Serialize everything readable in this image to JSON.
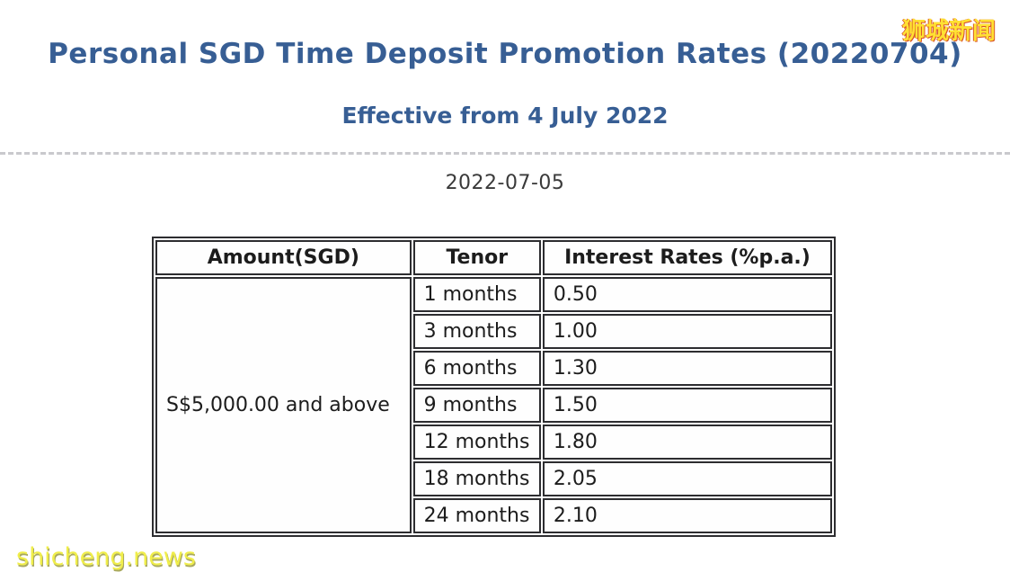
{
  "header": {
    "title": "Personal SGD Time Deposit Promotion Rates (20220704)",
    "subtitle": "Effective from 4 July 2022",
    "date": "2022-07-05"
  },
  "watermarks": {
    "top_right": "狮城新闻",
    "bottom_left": "shicheng.news"
  },
  "colors": {
    "heading_blue": "#375E94",
    "table_border": "#2d2d30",
    "watermark_yellow": "#ffe133",
    "watermark_yellow2": "#f0ee4a"
  },
  "table": {
    "columns": [
      "Amount(SGD)",
      "Tenor",
      "Interest Rates (%p.a.)"
    ],
    "amount_group": "S$5,000.00 and above",
    "rows": [
      {
        "tenor": "1 months",
        "rate": "0.50"
      },
      {
        "tenor": "3 months",
        "rate": "1.00"
      },
      {
        "tenor": "6 months",
        "rate": "1.30"
      },
      {
        "tenor": "9 months",
        "rate": "1.50"
      },
      {
        "tenor": "12 months",
        "rate": "1.80"
      },
      {
        "tenor": "18 months",
        "rate": "2.05"
      },
      {
        "tenor": "24 months",
        "rate": "2.10"
      }
    ]
  }
}
